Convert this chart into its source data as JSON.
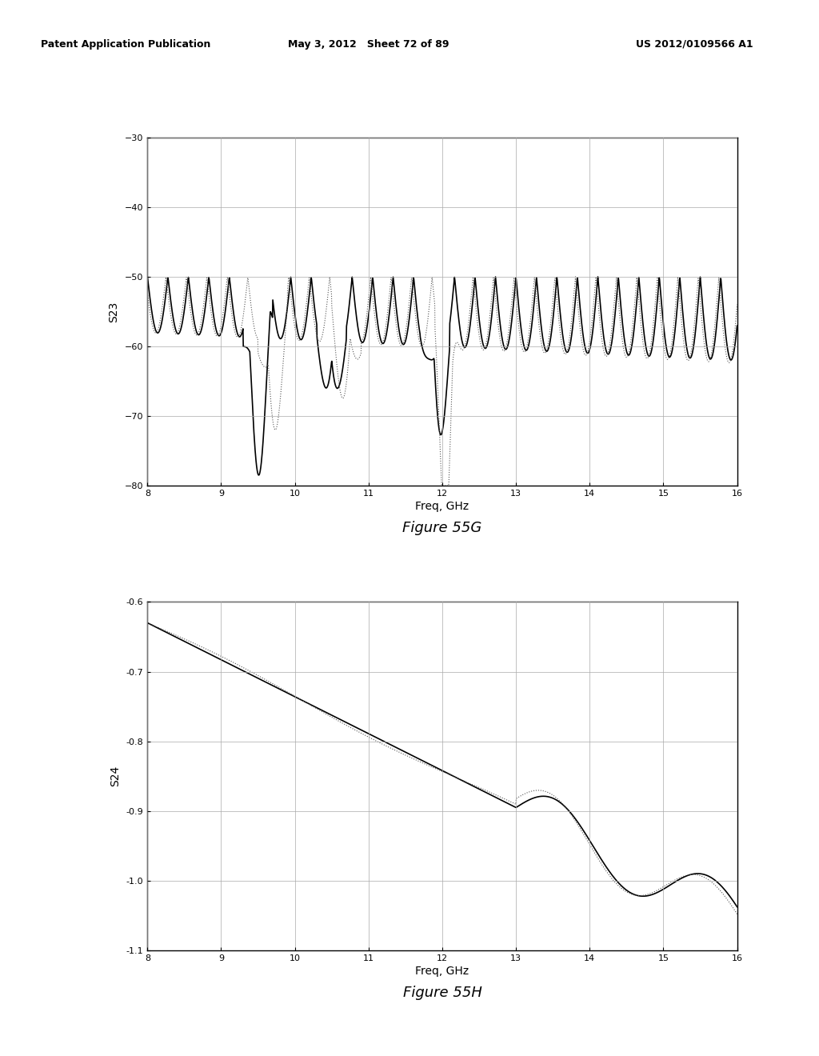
{
  "header_left": "Patent Application Publication",
  "header_center": "May 3, 2012   Sheet 72 of 89",
  "header_right": "US 2012/0109566 A1",
  "fig1_title": "Figure 55G",
  "fig2_title": "Figure 55H",
  "fig1_ylabel": "S23",
  "fig2_ylabel": "S24",
  "xlabel": "Freq, GHz",
  "fig1_xlim": [
    8,
    16
  ],
  "fig1_ylim": [
    -80,
    -30
  ],
  "fig1_yticks": [
    -80,
    -70,
    -60,
    -50,
    -40,
    -30
  ],
  "fig1_xticks": [
    8,
    9,
    10,
    11,
    12,
    13,
    14,
    15,
    16
  ],
  "fig2_xlim": [
    8,
    16
  ],
  "fig2_ylim": [
    -1.1,
    -0.6
  ],
  "fig2_yticks": [
    -1.1,
    -1.0,
    -0.9,
    -0.8,
    -0.7,
    -0.6
  ],
  "fig2_xticks": [
    8,
    9,
    10,
    11,
    12,
    13,
    14,
    15,
    16
  ],
  "background_color": "#ffffff",
  "line_color_solid": "#000000",
  "line_color_dotted": "#555555",
  "grid_color": "#aaaaaa"
}
